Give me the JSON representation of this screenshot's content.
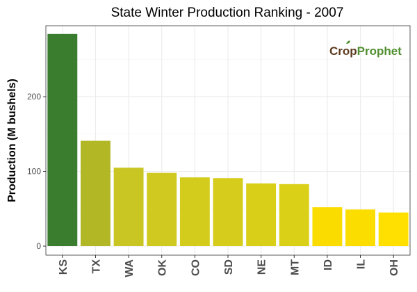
{
  "chart_data": {
    "type": "bar",
    "title": "State Winter  Production Ranking - 2007",
    "ylabel": "Production (M bushels)",
    "xlabel": "",
    "categories": [
      "KS",
      "TX",
      "WA",
      "OK",
      "CO",
      "SD",
      "NE",
      "MT",
      "ID",
      "IL",
      "OH"
    ],
    "values": [
      284,
      141,
      105,
      98,
      92,
      91,
      84,
      83,
      52,
      49,
      45
    ],
    "colors": [
      "#3a7d2f",
      "#b2b726",
      "#c9c623",
      "#d0c91f",
      "#d4cc1c",
      "#d5cc1c",
      "#d9cf19",
      "#dad017",
      "#fbdc00",
      "#fcdd00",
      "#ffe000"
    ],
    "ylim": [
      0,
      295
    ],
    "yticks": [
      0,
      100,
      200
    ],
    "grid": true,
    "legend": "none",
    "logo": {
      "part1": "Crop",
      "part2": "Prophet"
    }
  }
}
